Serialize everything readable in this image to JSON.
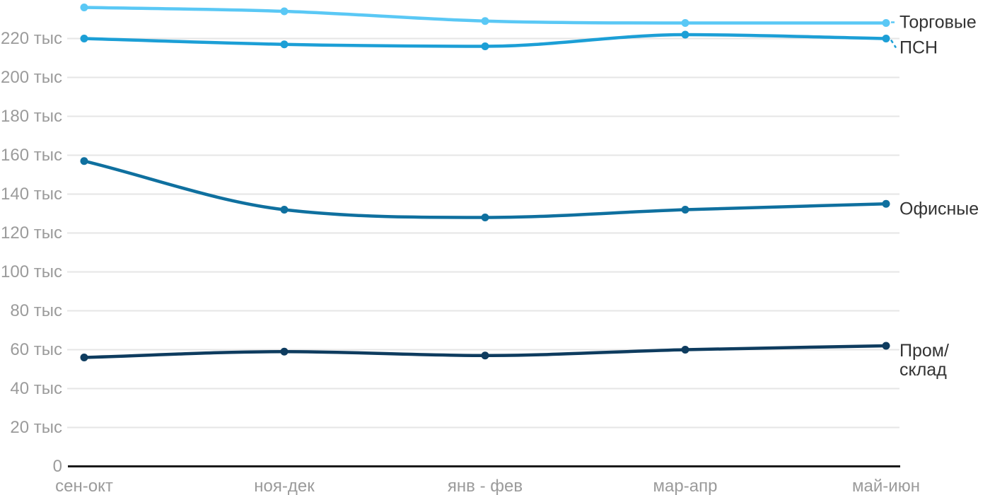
{
  "chart_data": {
    "type": "line",
    "title": "",
    "values_in": "thousands (тыс)",
    "categories": [
      "сен-окт",
      "ноя-дек",
      "янв - фев",
      "мар-апр",
      "май-июн"
    ],
    "series": [
      {
        "name": "Торговые",
        "label_lines": [
          "Торговые"
        ],
        "color": "#5AC8F5",
        "values": [
          236,
          234,
          229,
          228,
          228
        ]
      },
      {
        "name": "ПСН",
        "label_lines": [
          "ПСН"
        ],
        "color": "#1C9FD6",
        "values": [
          220,
          217,
          216,
          222,
          220
        ]
      },
      {
        "name": "Офисные",
        "label_lines": [
          "Офисные"
        ],
        "color": "#0F709F",
        "values": [
          157,
          132,
          128,
          132,
          135
        ]
      },
      {
        "name": "Пром/склад",
        "label_lines": [
          "Пром/",
          "склад"
        ],
        "color": "#0E3C5F",
        "values": [
          56,
          59,
          57,
          60,
          62
        ]
      }
    ],
    "y_axis": {
      "min": 0,
      "max": 240,
      "tick_step": 20,
      "tick_values": [
        0,
        20,
        40,
        60,
        80,
        100,
        120,
        140,
        160,
        180,
        200,
        220
      ],
      "tick_labels": [
        "0",
        "20 тыс",
        "40 тыс",
        "60 тыс",
        "80 тыс",
        "100 тыс",
        "120 тыс",
        "140 тыс",
        "160 тыс",
        "180 тыс",
        "200 тыс",
        "220 тыс"
      ]
    },
    "grid": "horizontal",
    "legend_position": "right-edge-inline-labels"
  },
  "colors": {
    "background": "#FFFFFF",
    "grid_line": "#E6E6E6",
    "axis_line": "#1A1A1A",
    "tick_text": "#9B9B9B",
    "series_label_text": "#333333"
  }
}
